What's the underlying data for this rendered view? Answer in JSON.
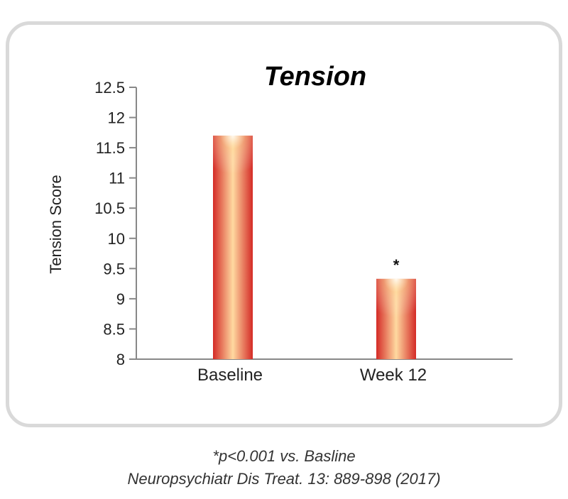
{
  "chart_data": {
    "type": "bar",
    "title": "Tension",
    "xlabel": "",
    "ylabel": "Tension Score",
    "categories": [
      "Baseline",
      "Week 12"
    ],
    "values": [
      11.7,
      9.33
    ],
    "ylim": [
      8,
      12.5
    ],
    "yticks": [
      "12.5",
      "12",
      "11.5",
      "11",
      "10.5",
      "10",
      "9.5",
      "9",
      "8.5",
      "8"
    ],
    "annotations": [
      "",
      "*"
    ],
    "grid": false,
    "bar_colors": {
      "edge": "#d42a26",
      "center": "#ffd9a0"
    }
  },
  "footnotes": {
    "significance": "*p<0.001 vs. Basline",
    "citation": "Neuropsychiatr Dis Treat. 13: 889-898 (2017)"
  }
}
